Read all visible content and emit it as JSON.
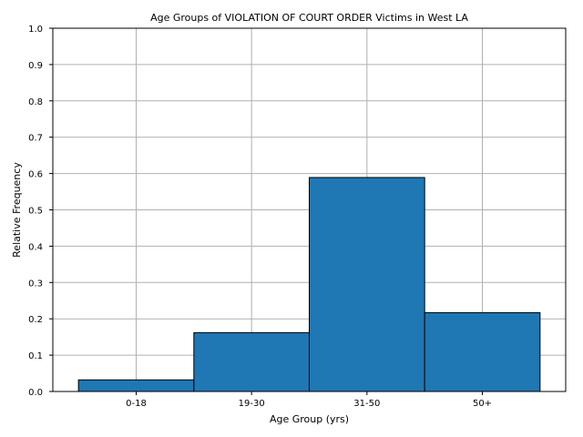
{
  "chart_data": {
    "type": "bar",
    "title": "Age Groups of VIOLATION OF COURT ORDER Victims in West LA",
    "xlabel": "Age Group (yrs)",
    "ylabel": "Relative Frequency",
    "categories": [
      "0-18",
      "19-30",
      "31-50",
      "50+"
    ],
    "values": [
      0.032,
      0.162,
      0.589,
      0.217
    ],
    "ylim": [
      0,
      1.0
    ],
    "yticks": [
      "0.0",
      "0.1",
      "0.2",
      "0.3",
      "0.4",
      "0.5",
      "0.6",
      "0.7",
      "0.8",
      "0.9",
      "1.0"
    ],
    "grid": true,
    "bar_color": "#1f77b4",
    "bar_edge_color": "#000000",
    "grid_color": "#b0b0b0"
  }
}
